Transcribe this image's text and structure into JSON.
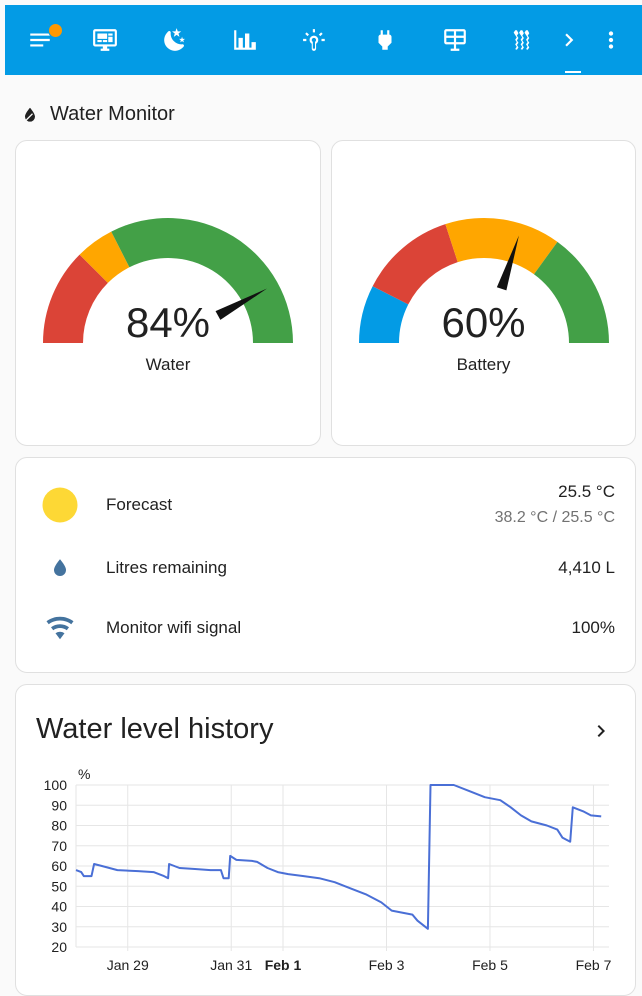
{
  "toolbar": {
    "icons": [
      "menu-icon",
      "monitor-dashboard-icon",
      "weather-night-icon",
      "chart-bar-icon",
      "thermometer-sun-icon",
      "power-plug-icon",
      "solar-panel-icon",
      "heating-icon",
      "chevron-right-icon",
      "dots-vertical-icon"
    ],
    "badge_color": "#ff9800",
    "background": "#039be5"
  },
  "section": {
    "title": "Water Monitor",
    "icon": "water-drop-icon"
  },
  "gauges": [
    {
      "value": 84,
      "display": "84%",
      "name": "Water",
      "segments": [
        {
          "from": 0,
          "to": 25,
          "color": "#db4437"
        },
        {
          "from": 25,
          "to": 35,
          "color": "#ffa600"
        },
        {
          "from": 35,
          "to": 100,
          "color": "#43a047"
        }
      ]
    },
    {
      "value": 60,
      "display": "60%",
      "name": "Battery",
      "segments": [
        {
          "from": 0,
          "to": 15,
          "color": "#039be5"
        },
        {
          "from": 15,
          "to": 40,
          "color": "#db4437"
        },
        {
          "from": 40,
          "to": 70,
          "color": "#ffa600"
        },
        {
          "from": 70,
          "to": 100,
          "color": "#43a047"
        }
      ]
    }
  ],
  "entities": {
    "forecast": {
      "name": "Forecast",
      "state": "25.5 °C",
      "secondary": "38.2 °C / 25.5 °C",
      "icon": "weather-sunny-icon",
      "icon_color": "#fdd835"
    },
    "litres": {
      "name": "Litres remaining",
      "state": "4,410 L",
      "icon": "water-icon",
      "icon_color": "#44739e"
    },
    "wifi": {
      "name": "Monitor wifi signal",
      "state": "100%",
      "icon": "wifi-icon",
      "icon_color": "#44739e"
    }
  },
  "history": {
    "title": "Water level history",
    "chevron_icon": "chevron-right-icon"
  },
  "chart_data": {
    "type": "line",
    "title": "Water level history",
    "ylabel": "%",
    "ylim": [
      20,
      100
    ],
    "yticks": [
      20,
      30,
      40,
      50,
      60,
      70,
      80,
      90,
      100
    ],
    "xlim_days": "Jan 28 – Feb 7",
    "xticks": [
      {
        "label": "Jan 29",
        "day": 1,
        "bold": false
      },
      {
        "label": "Jan 31",
        "day": 3,
        "bold": false
      },
      {
        "label": "Feb 1",
        "day": 4,
        "bold": true
      },
      {
        "label": "Feb 3",
        "day": 6,
        "bold": false
      },
      {
        "label": "Feb 5",
        "day": 8,
        "bold": false
      },
      {
        "label": "Feb 7",
        "day": 10,
        "bold": false
      }
    ],
    "grid": true,
    "color": "#4a6fd6",
    "series": [
      {
        "points": [
          [
            0.0,
            58
          ],
          [
            0.1,
            57
          ],
          [
            0.15,
            55
          ],
          [
            0.3,
            55
          ],
          [
            0.35,
            61
          ],
          [
            0.5,
            60
          ],
          [
            0.8,
            58
          ],
          [
            1.2,
            57.5
          ],
          [
            1.5,
            57
          ],
          [
            1.7,
            55
          ],
          [
            1.78,
            54
          ],
          [
            1.8,
            61
          ],
          [
            2.0,
            59
          ],
          [
            2.3,
            58.5
          ],
          [
            2.6,
            58
          ],
          [
            2.8,
            58
          ],
          [
            2.85,
            54
          ],
          [
            2.95,
            54
          ],
          [
            2.98,
            65
          ],
          [
            3.1,
            63
          ],
          [
            3.4,
            62.5
          ],
          [
            3.5,
            62
          ],
          [
            3.7,
            59
          ],
          [
            3.9,
            57
          ],
          [
            4.1,
            56
          ],
          [
            4.4,
            55
          ],
          [
            4.7,
            54
          ],
          [
            5.0,
            52
          ],
          [
            5.3,
            49
          ],
          [
            5.6,
            46
          ],
          [
            5.9,
            42
          ],
          [
            6.0,
            40
          ],
          [
            6.1,
            38
          ],
          [
            6.3,
            37
          ],
          [
            6.5,
            36
          ],
          [
            6.6,
            33
          ],
          [
            6.75,
            30
          ],
          [
            6.8,
            29
          ],
          [
            6.85,
            100
          ],
          [
            7.3,
            100
          ],
          [
            7.6,
            97
          ],
          [
            7.9,
            94
          ],
          [
            8.2,
            92.5
          ],
          [
            8.4,
            89
          ],
          [
            8.6,
            85
          ],
          [
            8.8,
            82
          ],
          [
            9.1,
            80
          ],
          [
            9.3,
            78
          ],
          [
            9.4,
            74
          ],
          [
            9.55,
            72
          ],
          [
            9.6,
            89
          ],
          [
            9.8,
            87
          ],
          [
            9.95,
            85
          ],
          [
            10.15,
            84.5
          ]
        ]
      }
    ]
  }
}
